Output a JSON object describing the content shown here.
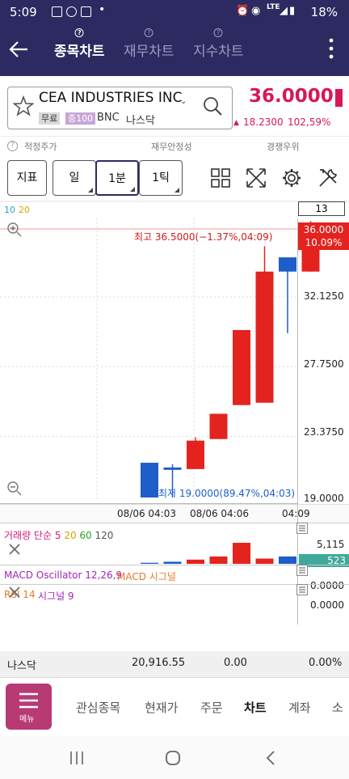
{
  "status_bar": {
    "time": "5:09",
    "battery": "18%",
    "network": "LTE"
  },
  "header": {
    "tabs": [
      {
        "label": "종목차트",
        "active": true
      },
      {
        "label": "재무차트",
        "active": false
      },
      {
        "label": "지수차트",
        "active": false
      }
    ]
  },
  "stock": {
    "name": "CEA INDUSTRIES INC",
    "badge_free": "무료",
    "badge_margin": "증100",
    "ticker": "BNC",
    "market": "나스닥",
    "price": "36.0000",
    "change": "18.2300",
    "change_pct": "102,59%"
  },
  "info_row": {
    "fair_price": "적정주가",
    "financial_stability": "재무안정성",
    "competitive_rank": "경쟁우위"
  },
  "toolbar": {
    "indicator": "지표",
    "day": "일",
    "minute": "1분",
    "tick": "1틱"
  },
  "chart": {
    "ma_labels": [
      "10",
      "20"
    ],
    "count_box": "13",
    "high_label": "최고 36.5000(−1.37%,04:09)",
    "low_label": "최저 19.0000(89.47%,04:03)",
    "current_price": "36.0000",
    "current_pct": "10.09%",
    "x_labels": [
      "08/06 04:03",
      "08/06 04:06",
      "04:09"
    ]
  },
  "chart_data": {
    "type": "candlestick",
    "ylim": [
      19.0,
      37.3
    ],
    "y_ticks": [
      "32.1250",
      "27.7500",
      "23.3750",
      "19.0000"
    ],
    "candles": [
      {
        "o": 21.2,
        "h": 21.2,
        "l": 19.0,
        "c": 19.0,
        "dir": "down"
      },
      {
        "o": 20.9,
        "h": 21.1,
        "l": 19.0,
        "c": 20.75,
        "dir": "down"
      },
      {
        "o": 20.8,
        "h": 22.8,
        "l": 20.8,
        "c": 22.6,
        "dir": "up"
      },
      {
        "o": 22.7,
        "h": 24.3,
        "l": 22.7,
        "c": 24.3,
        "dir": "up"
      },
      {
        "o": 24.85,
        "h": 29.6,
        "l": 24.85,
        "c": 29.6,
        "dir": "up"
      },
      {
        "o": 25.0,
        "h": 34.9,
        "l": 25.0,
        "c": 33.3,
        "dir": "up"
      },
      {
        "o": 34.2,
        "h": 34.2,
        "l": 29.4,
        "c": 33.3,
        "dir": "down"
      },
      {
        "o": 33.3,
        "h": 36.5,
        "l": 33.3,
        "c": 36.0,
        "dir": "up"
      }
    ],
    "volume": {
      "label": "거래량 단순",
      "periods": [
        "5",
        "20",
        "60",
        "120"
      ],
      "max_label": "5,115",
      "current": "523",
      "bars": [
        0.05,
        0.1,
        0.2,
        0.35,
        1.0,
        0.25,
        0.35,
        0.12
      ]
    },
    "macd": {
      "label": "MACD Oscillator 12,26,9",
      "signal_label": "MACD 시그널",
      "value": "0.0000"
    },
    "rsi": {
      "label": "RSI 14",
      "signal_label": "시그널 9",
      "value": "0.0000"
    }
  },
  "market_row": {
    "market": "나스닥",
    "value": "20,916.55",
    "change": "0.00",
    "pct": "0.00%"
  },
  "bottom_nav": {
    "menu_label": "메뉴",
    "items": [
      "관심종목",
      "현재가",
      "주문",
      "차트",
      "계좌",
      "소"
    ]
  },
  "colors": {
    "header": "#2c2a60",
    "up": "#e4231e",
    "down": "#1d5ec9",
    "price": "#d6185a"
  }
}
